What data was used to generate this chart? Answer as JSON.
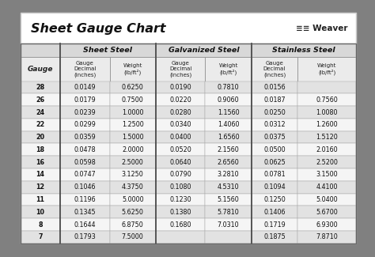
{
  "title": "Sheet Gauge Chart",
  "bg_outer": "#808080",
  "bg_white": "#ffffff",
  "bg_light": "#f0f0f0",
  "bg_header_row": "#d8d8d8",
  "bg_subheader": "#ebebeb",
  "bg_row_odd": "#e2e2e2",
  "bg_row_even": "#f5f5f5",
  "border_color": "#999999",
  "text_dark": "#1a1a1a",
  "gauges": [
    28,
    26,
    24,
    22,
    20,
    18,
    16,
    14,
    12,
    11,
    10,
    8,
    7
  ],
  "sheet_steel_decimal": [
    "0.0149",
    "0.0179",
    "0.0239",
    "0.0299",
    "0.0359",
    "0.0478",
    "0.0598",
    "0.0747",
    "0.1046",
    "0.1196",
    "0.1345",
    "0.1644",
    "0.1793"
  ],
  "sheet_steel_weight": [
    "0.6250",
    "0.7500",
    "1.0000",
    "1.2500",
    "1.5000",
    "2.0000",
    "2.5000",
    "3.1250",
    "4.3750",
    "5.0000",
    "5.6250",
    "6.8750",
    "7.5000"
  ],
  "galv_decimal": [
    "0.0190",
    "0.0220",
    "0.0280",
    "0.0340",
    "0.0400",
    "0.0520",
    "0.0640",
    "0.0790",
    "0.1080",
    "0.1230",
    "0.1380",
    "0.1680",
    ""
  ],
  "galv_weight": [
    "0.7810",
    "0.9060",
    "1.1560",
    "1.4060",
    "1.6560",
    "2.1560",
    "2.6560",
    "3.2810",
    "4.5310",
    "5.1560",
    "5.7810",
    "7.0310",
    ""
  ],
  "stainless_decimal": [
    "0.0156",
    "0.0187",
    "0.0250",
    "0.0312",
    "0.0375",
    "0.0500",
    "0.0625",
    "0.0781",
    "0.1094",
    "0.1250",
    "0.1406",
    "0.1719",
    "0.1875"
  ],
  "stainless_weight": [
    "",
    "0.7560",
    "1.0080",
    "1.2600",
    "1.5120",
    "2.0160",
    "2.5200",
    "3.1500",
    "4.4100",
    "5.0400",
    "5.6700",
    "6.9300",
    "7.8710"
  ]
}
